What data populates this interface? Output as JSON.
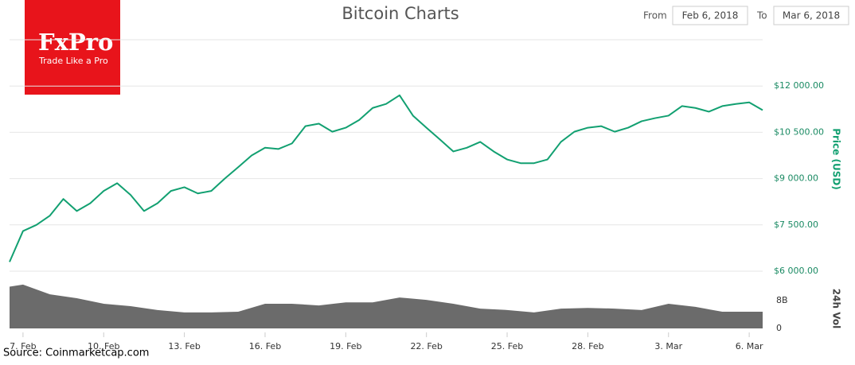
{
  "logo": {
    "brand": "FxPro",
    "tagline": "Trade Like a Pro"
  },
  "range": {
    "from_label": "From",
    "from": "Feb 6, 2018",
    "to_label": "To",
    "to": "Mar 6, 2018"
  },
  "source": "Source: Coinmarketcap.com",
  "chart_data": {
    "type": "line",
    "title": "Bitcoin Charts",
    "y_label": "Price (USD)",
    "grid": true,
    "xlim": [
      6.5,
      34.5
    ],
    "xticks": [
      {
        "value": 7,
        "label": "7. Feb"
      },
      {
        "value": 10,
        "label": "10. Feb"
      },
      {
        "value": 13,
        "label": "13. Feb"
      },
      {
        "value": 16,
        "label": "16. Feb"
      },
      {
        "value": 19,
        "label": "19. Feb"
      },
      {
        "value": 22,
        "label": "22. Feb"
      },
      {
        "value": 25,
        "label": "25. Feb"
      },
      {
        "value": 28,
        "label": "28. Feb"
      },
      {
        "value": 31,
        "label": "3. Mar"
      },
      {
        "value": 34,
        "label": "6. Mar"
      }
    ],
    "ylim": [
      6000,
      13500
    ],
    "yticks": [
      {
        "value": 6000,
        "label": "$6 000.00"
      },
      {
        "value": 7500,
        "label": "$7 500.00"
      },
      {
        "value": 9000,
        "label": "$9 000.00"
      },
      {
        "value": 10500,
        "label": "$10 500.00"
      },
      {
        "value": 12000,
        "label": "$12 000.00"
      }
    ],
    "x": [
      6.5,
      7,
      7.5,
      8,
      8.5,
      9,
      9.5,
      10,
      10.5,
      11,
      11.5,
      12,
      12.5,
      13,
      13.5,
      14,
      14.5,
      15,
      15.5,
      16,
      16.5,
      17,
      17.5,
      18,
      18.5,
      19,
      19.5,
      20,
      20.5,
      21,
      21.5,
      22,
      22.5,
      23,
      23.5,
      24,
      24.5,
      25,
      25.5,
      26,
      26.5,
      27,
      27.5,
      28,
      28.5,
      29,
      29.5,
      30,
      30.5,
      31,
      31.5,
      32,
      32.5,
      33,
      33.5,
      34,
      34.5
    ],
    "series": [
      {
        "name": "Price",
        "color": "#12a071",
        "values": [
          6300,
          7300,
          7500,
          7800,
          8340,
          7950,
          8200,
          8600,
          8850,
          8470,
          7950,
          8200,
          8600,
          8720,
          8520,
          8600,
          9000,
          9370,
          9750,
          10000,
          9960,
          10140,
          10700,
          10780,
          10520,
          10650,
          10900,
          11290,
          11420,
          11700,
          11040,
          10650,
          10270,
          9880,
          10000,
          10190,
          9880,
          9620,
          9500,
          9500,
          9620,
          10190,
          10520,
          10650,
          10700,
          10520,
          10650,
          10860,
          10960,
          11040,
          11350,
          11290,
          11170,
          11350,
          11420,
          11470,
          11220
        ]
      }
    ],
    "volume": {
      "name": "24h Vol",
      "color": "#6b6b6b",
      "ylim": [
        0,
        15000000000
      ],
      "yticks": [
        0,
        {
          "value": 8000000000,
          "label": "8B"
        }
      ],
      "x": [
        6.5,
        7,
        8,
        9,
        10,
        11,
        12,
        13,
        14,
        15,
        16,
        17,
        18,
        19,
        20,
        21,
        22,
        23,
        24,
        25,
        26,
        27,
        28,
        29,
        30,
        31,
        32,
        33,
        34,
        34.5
      ],
      "values": [
        12000000000,
        12600000000,
        9800000000,
        8700000000,
        7100000000,
        6400000000,
        5300000000,
        4600000000,
        4600000000,
        4800000000,
        7100000000,
        7100000000,
        6600000000,
        7500000000,
        7500000000,
        8900000000,
        8200000000,
        7100000000,
        5700000000,
        5300000000,
        4600000000,
        5700000000,
        5900000000,
        5700000000,
        5300000000,
        7100000000,
        6200000000,
        4800000000,
        4800000000,
        4800000000
      ]
    }
  }
}
